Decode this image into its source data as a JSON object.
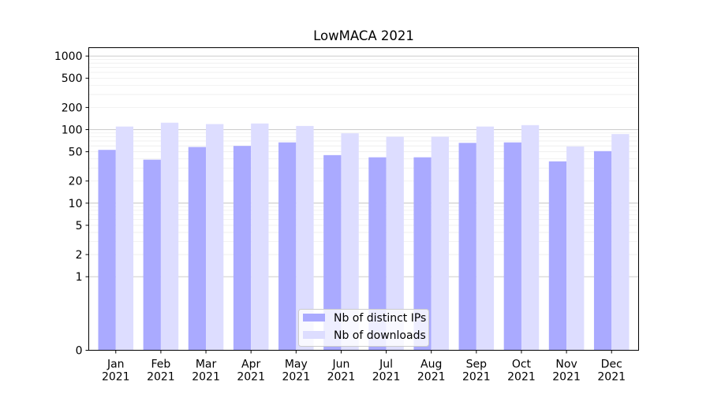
{
  "chart_data": {
    "type": "bar",
    "title": "LowMACA 2021",
    "xlabel": "",
    "ylabel": "",
    "categories": [
      [
        "Jan",
        "2021"
      ],
      [
        "Feb",
        "2021"
      ],
      [
        "Mar",
        "2021"
      ],
      [
        "Apr",
        "2021"
      ],
      [
        "May",
        "2021"
      ],
      [
        "Jun",
        "2021"
      ],
      [
        "Jul",
        "2021"
      ],
      [
        "Aug",
        "2021"
      ],
      [
        "Sep",
        "2021"
      ],
      [
        "Oct",
        "2021"
      ],
      [
        "Nov",
        "2021"
      ],
      [
        "Dec",
        "2021"
      ]
    ],
    "series": [
      {
        "name": "Nb of distinct IPs",
        "color": "#aaaaff",
        "values": [
          53,
          39,
          58,
          60,
          67,
          45,
          42,
          42,
          66,
          67,
          37,
          51
        ]
      },
      {
        "name": "Nb of downloads",
        "color": "#ddddff",
        "values": [
          110,
          124,
          119,
          121,
          112,
          89,
          80,
          80,
          110,
          115,
          59,
          87
        ]
      }
    ],
    "yscale": "symlog",
    "ylim": [
      0,
      1300
    ],
    "yticks": [
      0,
      1,
      2,
      5,
      10,
      20,
      50,
      100,
      200,
      500,
      1000
    ],
    "ytick_labels": [
      "0",
      "1",
      "2",
      "5",
      "10",
      "20",
      "50",
      "100",
      "200",
      "500",
      "1000"
    ],
    "grid": true,
    "legend_position": "bottom-center"
  }
}
